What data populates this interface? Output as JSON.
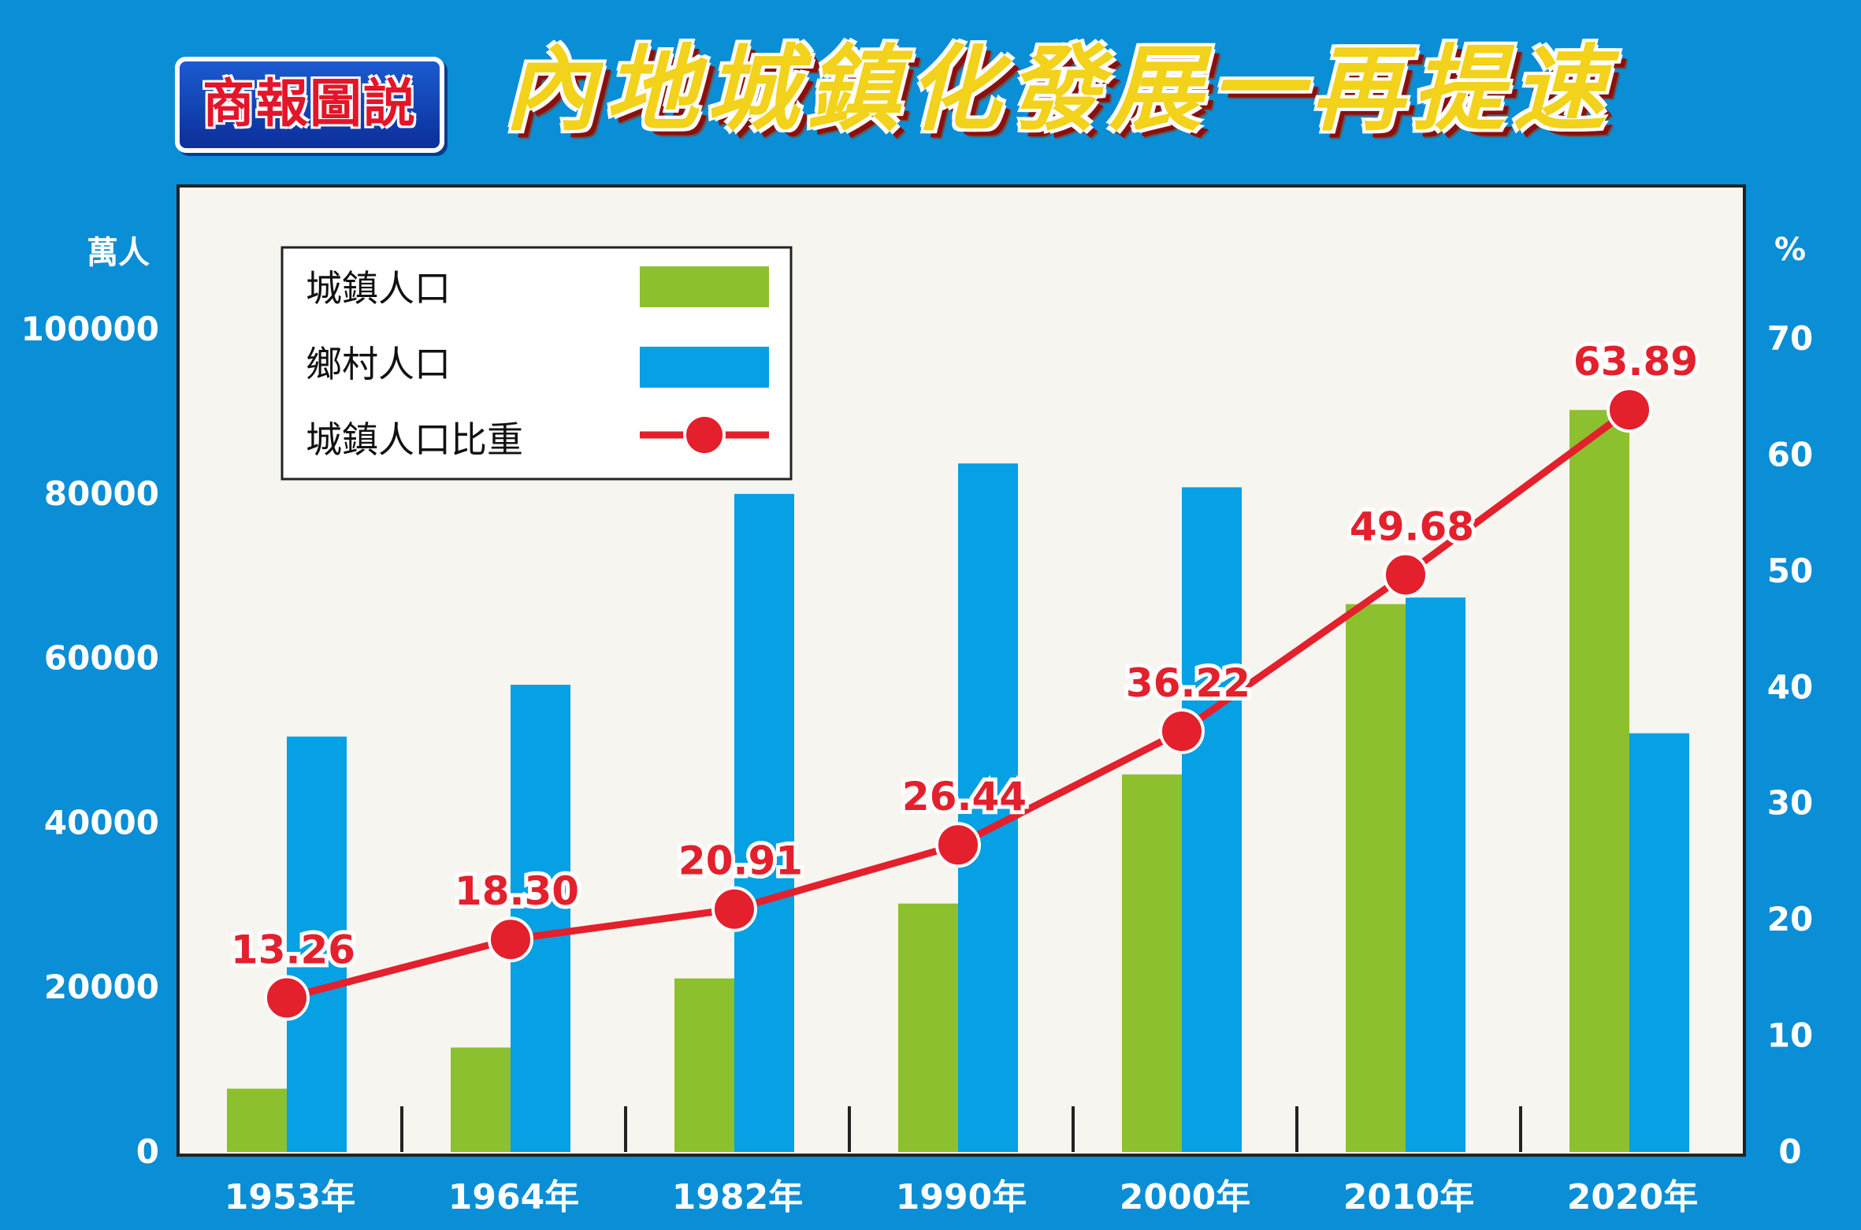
{
  "header": {
    "badge": "商報圖説",
    "title": "內地城鎮化發展一再提速"
  },
  "colors": {
    "background": "#0a8ed6",
    "plot_background": "#f7f5ef",
    "urban_bar": "#8dc02f",
    "rural_bar": "#06a0e4",
    "ratio_line": "#e3202c"
  },
  "chart_data": {
    "type": "bar",
    "categories": [
      "1953年",
      "1964年",
      "1982年",
      "1990年",
      "2000年",
      "2010年",
      "2020年"
    ],
    "y_left": {
      "unit": "萬人",
      "ticks": [
        "0",
        "20000",
        "40000",
        "60000",
        "80000",
        "100000"
      ],
      "ylim": [
        0,
        100000
      ]
    },
    "y_right": {
      "unit": "%",
      "ticks": [
        "0",
        "10",
        "20",
        "30",
        "40",
        "50",
        "60",
        "70"
      ],
      "ylim": [
        0,
        70
      ]
    },
    "series": [
      {
        "name": "城鎮人口",
        "type": "bar",
        "axis": "left",
        "values": [
          7700,
          12700,
          21100,
          30200,
          45900,
          66600,
          90200
        ]
      },
      {
        "name": "鄉村人口",
        "type": "bar",
        "axis": "left",
        "values": [
          50500,
          56800,
          80000,
          83700,
          80800,
          67400,
          50900
        ]
      },
      {
        "name": "城鎮人口比重",
        "type": "line",
        "axis": "right",
        "values": [
          13.26,
          18.3,
          20.91,
          26.44,
          36.22,
          49.68,
          63.89
        ],
        "labels": [
          "13.26",
          "18.30",
          "20.91",
          "26.44",
          "36.22",
          "49.68",
          "63.89"
        ]
      }
    ],
    "legend": {
      "position": "top-left"
    },
    "grid": false
  }
}
